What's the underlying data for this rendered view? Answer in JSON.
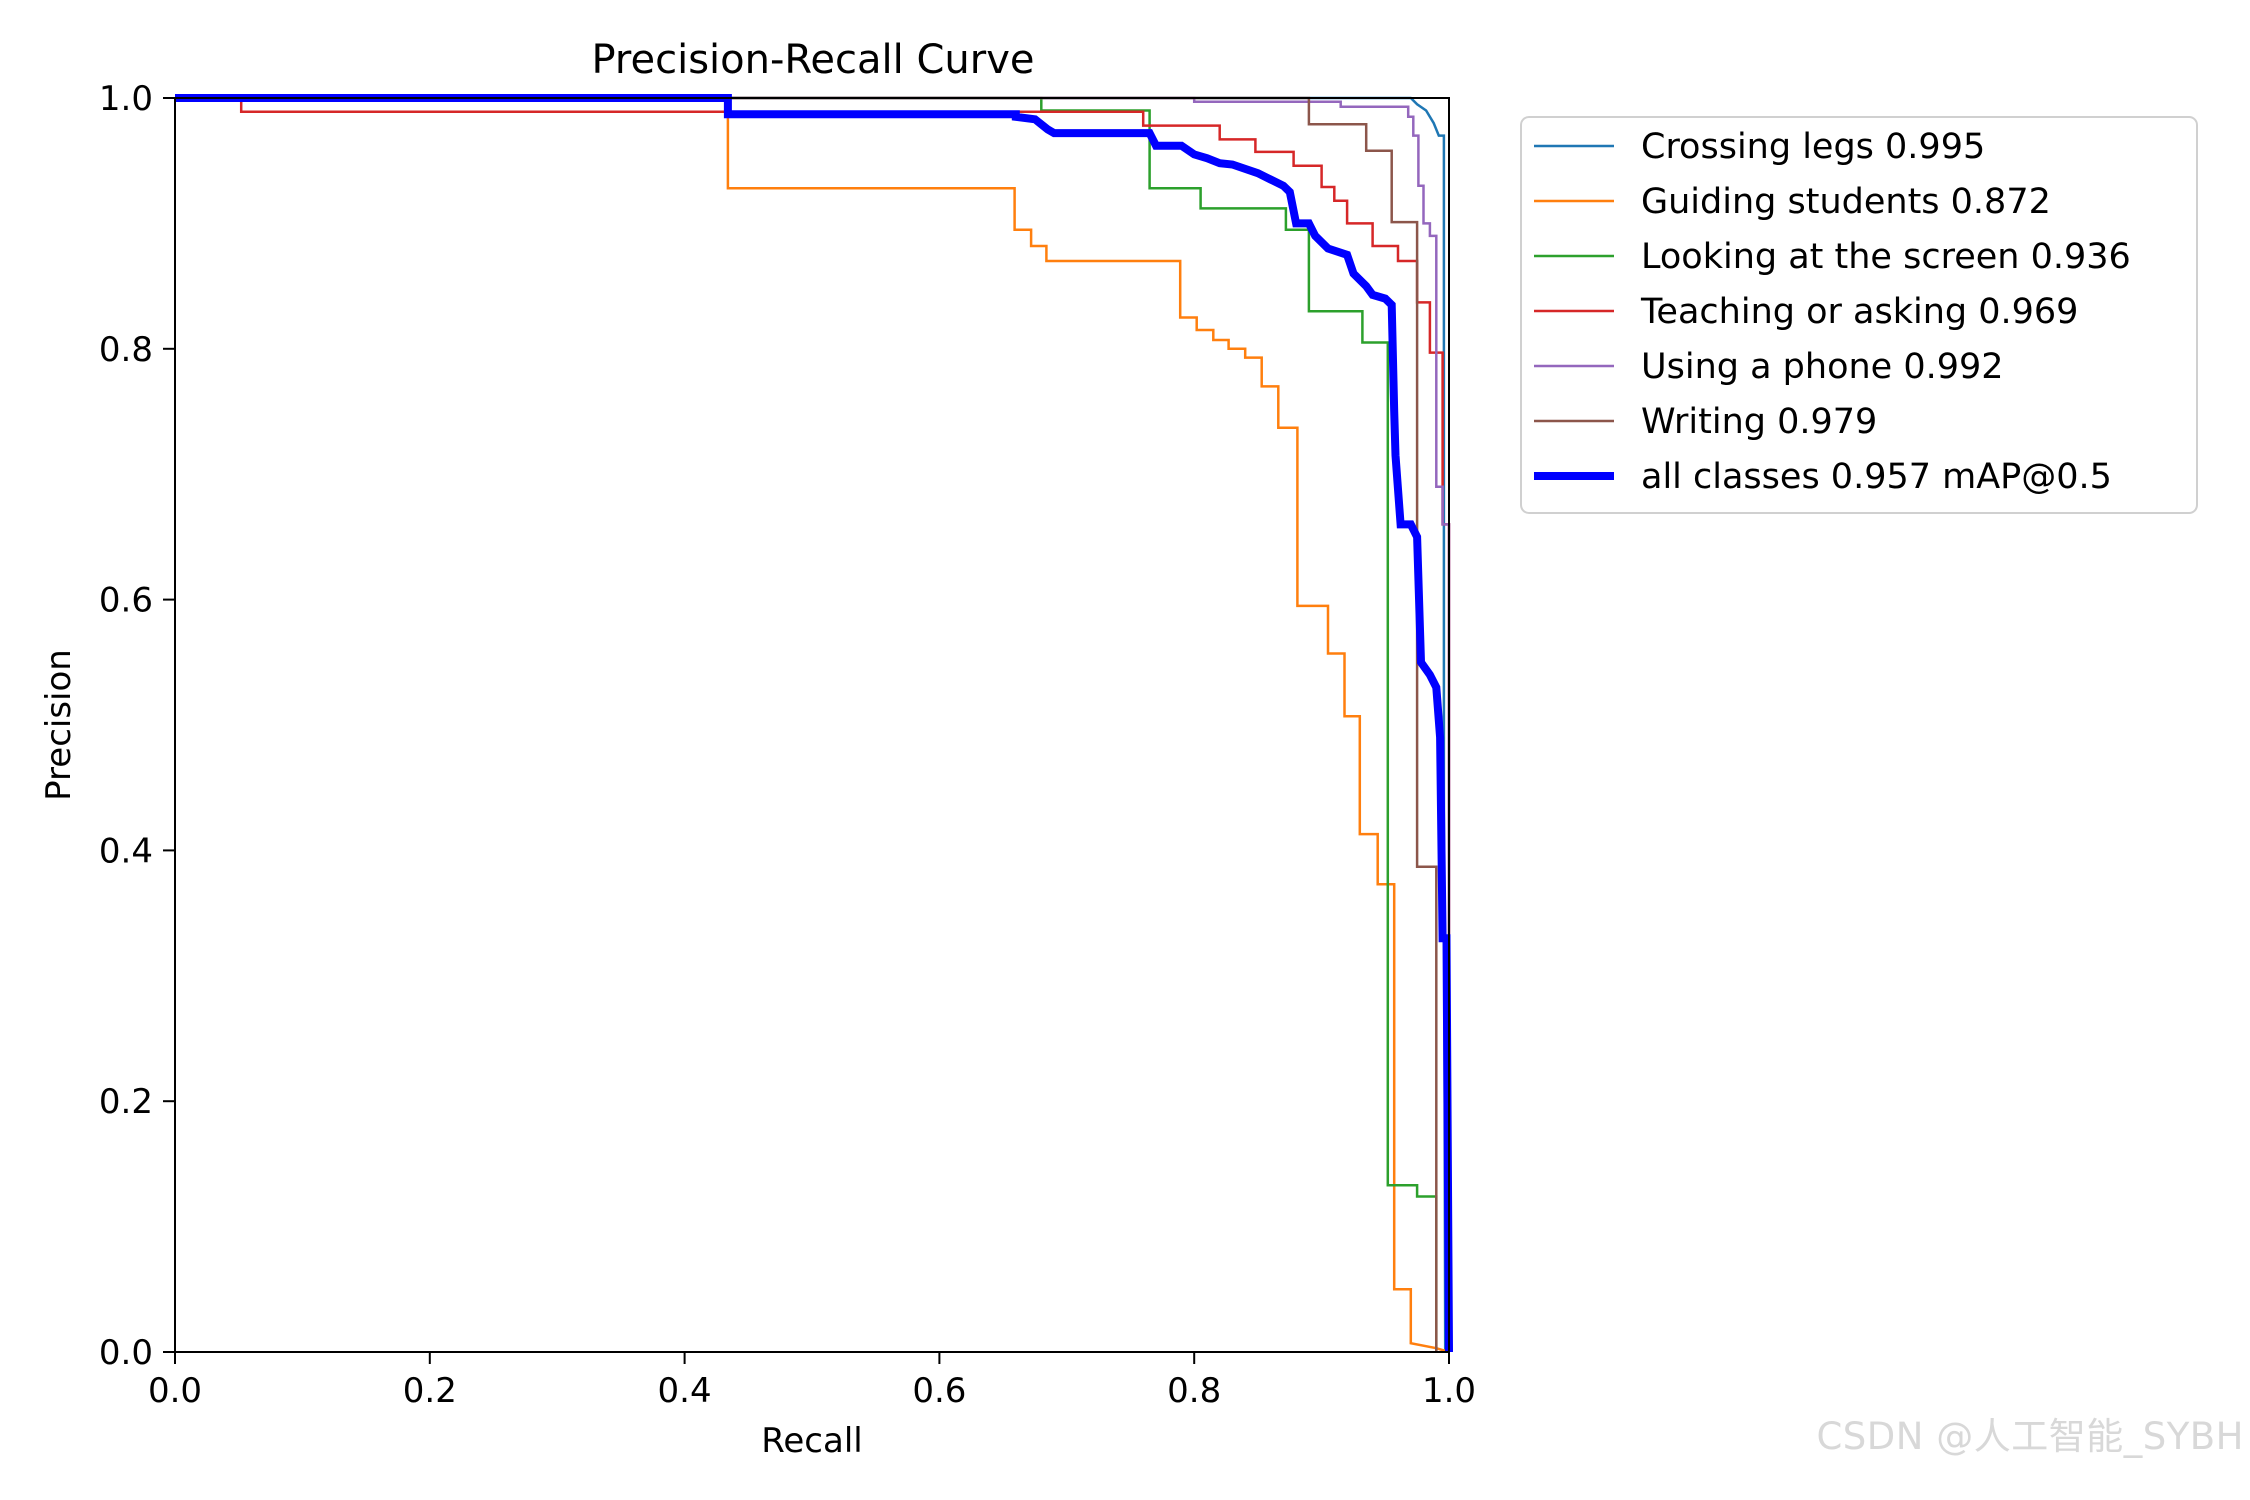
{
  "watermark": "CSDN @人工智能_SYBH",
  "chart_data": {
    "type": "line",
    "title": "Precision-Recall Curve",
    "xlabel": "Recall",
    "ylabel": "Precision",
    "xlim": [
      0,
      1
    ],
    "ylim": [
      0,
      1
    ],
    "xticks": [
      "0.0",
      "0.2",
      "0.4",
      "0.6",
      "0.8",
      "1.0"
    ],
    "yticks": [
      "0.0",
      "0.2",
      "0.4",
      "0.6",
      "0.8",
      "1.0"
    ],
    "legend_position": "outside-top-right",
    "series": [
      {
        "name": "Crossing legs 0.995",
        "color": "#1f77b4",
        "width": "thin",
        "points": [
          [
            0,
            1.0
          ],
          [
            0.97,
            1.0
          ],
          [
            0.975,
            0.995
          ],
          [
            0.982,
            0.99
          ],
          [
            0.988,
            0.98
          ],
          [
            0.992,
            0.97
          ],
          [
            0.996,
            0.97
          ],
          [
            0.996,
            0.45
          ],
          [
            0.997,
            0.0
          ]
        ]
      },
      {
        "name": "Guiding students 0.872",
        "color": "#ff7f0e",
        "width": "thin",
        "points": [
          [
            0,
            1.0
          ],
          [
            0.434,
            1.0
          ],
          [
            0.434,
            0.928
          ],
          [
            0.659,
            0.928
          ],
          [
            0.659,
            0.895
          ],
          [
            0.672,
            0.895
          ],
          [
            0.672,
            0.882
          ],
          [
            0.684,
            0.882
          ],
          [
            0.684,
            0.87
          ],
          [
            0.789,
            0.87
          ],
          [
            0.789,
            0.825
          ],
          [
            0.802,
            0.825
          ],
          [
            0.802,
            0.815
          ],
          [
            0.815,
            0.815
          ],
          [
            0.815,
            0.807
          ],
          [
            0.827,
            0.807
          ],
          [
            0.827,
            0.8
          ],
          [
            0.84,
            0.8
          ],
          [
            0.84,
            0.793
          ],
          [
            0.853,
            0.793
          ],
          [
            0.853,
            0.77
          ],
          [
            0.866,
            0.77
          ],
          [
            0.866,
            0.737
          ],
          [
            0.881,
            0.737
          ],
          [
            0.881,
            0.595
          ],
          [
            0.905,
            0.595
          ],
          [
            0.905,
            0.557
          ],
          [
            0.918,
            0.557
          ],
          [
            0.918,
            0.507
          ],
          [
            0.93,
            0.507
          ],
          [
            0.93,
            0.413
          ],
          [
            0.944,
            0.413
          ],
          [
            0.944,
            0.373
          ],
          [
            0.957,
            0.373
          ],
          [
            0.957,
            0.05
          ],
          [
            0.97,
            0.05
          ],
          [
            0.97,
            0.007
          ],
          [
            0.99,
            0.003
          ],
          [
            1.0,
            0.0
          ]
        ]
      },
      {
        "name": "Looking at the screen 0.936",
        "color": "#2ca02c",
        "width": "thin",
        "points": [
          [
            0,
            1.0
          ],
          [
            0.68,
            1.0
          ],
          [
            0.68,
            0.99
          ],
          [
            0.765,
            0.99
          ],
          [
            0.765,
            0.928
          ],
          [
            0.805,
            0.928
          ],
          [
            0.805,
            0.912
          ],
          [
            0.872,
            0.912
          ],
          [
            0.872,
            0.895
          ],
          [
            0.89,
            0.895
          ],
          [
            0.89,
            0.83
          ],
          [
            0.932,
            0.83
          ],
          [
            0.932,
            0.805
          ],
          [
            0.952,
            0.805
          ],
          [
            0.952,
            0.133
          ],
          [
            0.975,
            0.133
          ],
          [
            0.975,
            0.124
          ],
          [
            0.99,
            0.124
          ],
          [
            0.99,
            0.0
          ]
        ]
      },
      {
        "name": "Teaching or asking 0.969",
        "color": "#d62728",
        "width": "thin",
        "points": [
          [
            0,
            1.0
          ],
          [
            0.052,
            1.0
          ],
          [
            0.052,
            0.989
          ],
          [
            0.76,
            0.989
          ],
          [
            0.76,
            0.978
          ],
          [
            0.82,
            0.978
          ],
          [
            0.82,
            0.967
          ],
          [
            0.848,
            0.967
          ],
          [
            0.848,
            0.957
          ],
          [
            0.878,
            0.957
          ],
          [
            0.878,
            0.946
          ],
          [
            0.9,
            0.946
          ],
          [
            0.9,
            0.929
          ],
          [
            0.91,
            0.929
          ],
          [
            0.91,
            0.918
          ],
          [
            0.92,
            0.918
          ],
          [
            0.92,
            0.9
          ],
          [
            0.94,
            0.9
          ],
          [
            0.94,
            0.882
          ],
          [
            0.96,
            0.882
          ],
          [
            0.96,
            0.87
          ],
          [
            0.975,
            0.87
          ],
          [
            0.975,
            0.837
          ],
          [
            0.985,
            0.837
          ],
          [
            0.985,
            0.797
          ],
          [
            0.995,
            0.797
          ],
          [
            0.995,
            0.66
          ],
          [
            1.0,
            0.66
          ],
          [
            1.0,
            0.0
          ]
        ]
      },
      {
        "name": "Using a phone 0.992",
        "color": "#9467bd",
        "width": "thin",
        "points": [
          [
            0,
            1.0
          ],
          [
            0.8,
            1.0
          ],
          [
            0.8,
            0.997
          ],
          [
            0.915,
            0.997
          ],
          [
            0.915,
            0.993
          ],
          [
            0.968,
            0.993
          ],
          [
            0.968,
            0.985
          ],
          [
            0.972,
            0.985
          ],
          [
            0.972,
            0.97
          ],
          [
            0.976,
            0.97
          ],
          [
            0.976,
            0.93
          ],
          [
            0.98,
            0.93
          ],
          [
            0.98,
            0.9
          ],
          [
            0.985,
            0.9
          ],
          [
            0.985,
            0.89
          ],
          [
            0.99,
            0.89
          ],
          [
            0.99,
            0.69
          ],
          [
            0.995,
            0.69
          ],
          [
            0.995,
            0.66
          ],
          [
            1.0,
            0.66
          ],
          [
            1.0,
            0.0
          ]
        ]
      },
      {
        "name": "Writing 0.979",
        "color": "#8c564b",
        "width": "thin",
        "points": [
          [
            0,
            1.0
          ],
          [
            0.89,
            1.0
          ],
          [
            0.89,
            0.979
          ],
          [
            0.935,
            0.979
          ],
          [
            0.935,
            0.958
          ],
          [
            0.955,
            0.958
          ],
          [
            0.955,
            0.901
          ],
          [
            0.975,
            0.901
          ],
          [
            0.975,
            0.387
          ],
          [
            0.99,
            0.387
          ],
          [
            0.99,
            0.0
          ]
        ]
      },
      {
        "name": "all classes 0.957 mAP@0.5",
        "color": "#0000ff",
        "width": "thick",
        "points": [
          [
            0,
            1.0
          ],
          [
            0.434,
            1.0
          ],
          [
            0.434,
            0.987
          ],
          [
            0.66,
            0.987
          ],
          [
            0.66,
            0.985
          ],
          [
            0.675,
            0.983
          ],
          [
            0.685,
            0.975
          ],
          [
            0.69,
            0.972
          ],
          [
            0.765,
            0.972
          ],
          [
            0.77,
            0.962
          ],
          [
            0.79,
            0.962
          ],
          [
            0.8,
            0.955
          ],
          [
            0.81,
            0.952
          ],
          [
            0.82,
            0.948
          ],
          [
            0.83,
            0.947
          ],
          [
            0.85,
            0.94
          ],
          [
            0.86,
            0.935
          ],
          [
            0.87,
            0.93
          ],
          [
            0.875,
            0.925
          ],
          [
            0.88,
            0.9
          ],
          [
            0.89,
            0.9
          ],
          [
            0.895,
            0.89
          ],
          [
            0.905,
            0.88
          ],
          [
            0.92,
            0.875
          ],
          [
            0.925,
            0.86
          ],
          [
            0.935,
            0.85
          ],
          [
            0.94,
            0.843
          ],
          [
            0.95,
            0.84
          ],
          [
            0.955,
            0.835
          ],
          [
            0.957,
            0.75
          ],
          [
            0.958,
            0.715
          ],
          [
            0.962,
            0.66
          ],
          [
            0.97,
            0.66
          ],
          [
            0.975,
            0.65
          ],
          [
            0.978,
            0.55
          ],
          [
            0.985,
            0.54
          ],
          [
            0.99,
            0.53
          ],
          [
            0.993,
            0.49
          ],
          [
            0.995,
            0.33
          ],
          [
            0.998,
            0.33
          ],
          [
            1.0,
            0.0
          ]
        ]
      }
    ]
  }
}
